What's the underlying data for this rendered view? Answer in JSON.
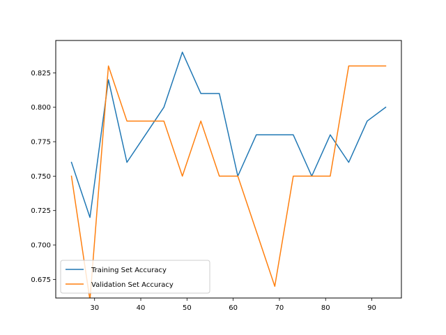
{
  "chart_data": {
    "type": "line",
    "title": "",
    "xlabel": "",
    "ylabel": "",
    "xlim": [
      21.6,
      96.4
    ],
    "ylim": [
      0.6615,
      0.8485
    ],
    "xticks": [
      30,
      40,
      50,
      60,
      70,
      80,
      90
    ],
    "yticks": [
      0.675,
      0.7,
      0.725,
      0.75,
      0.775,
      0.8,
      0.825
    ],
    "grid": false,
    "legend_position": "lower-left",
    "x": [
      25,
      29,
      33,
      37,
      41,
      45,
      49,
      53,
      57,
      61,
      65,
      69,
      73,
      77,
      81,
      85,
      89,
      93
    ],
    "series": [
      {
        "name": "Training Set Accuracy",
        "color": "#1f77b4",
        "values": [
          0.76,
          0.72,
          0.82,
          0.76,
          0.78,
          0.8,
          0.84,
          0.81,
          0.81,
          0.75,
          0.78,
          0.78,
          0.78,
          0.75,
          0.78,
          0.76,
          0.79,
          0.8
        ]
      },
      {
        "name": "Validation Set Accuracy",
        "color": "#ff7f0e",
        "values": [
          0.75,
          0.66,
          0.83,
          0.79,
          0.79,
          0.79,
          0.75,
          0.79,
          0.75,
          0.75,
          0.71,
          0.67,
          0.75,
          0.75,
          0.75,
          0.83,
          0.83,
          0.83
        ]
      }
    ]
  }
}
